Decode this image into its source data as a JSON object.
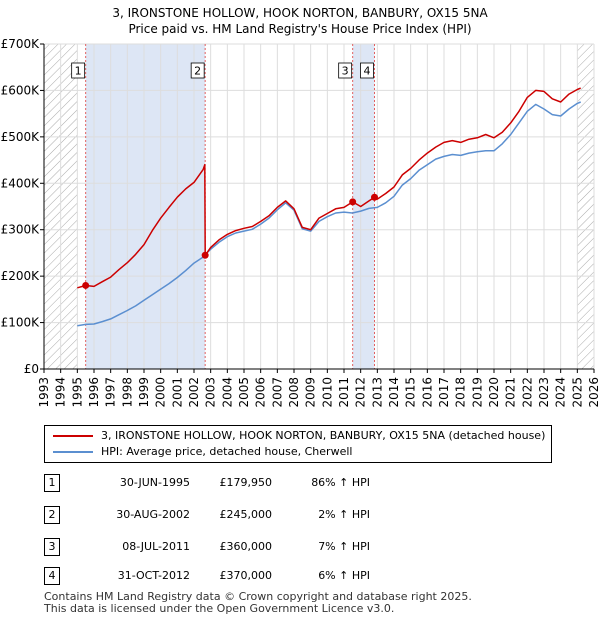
{
  "header": {
    "title_line1": "3, IRONSTONE HOLLOW, HOOK NORTON, BANBURY, OX15 5NA",
    "title_line2": "Price paid vs. HM Land Registry's House Price Index (HPI)"
  },
  "colors": {
    "property_line": "#cc0000",
    "hpi_line": "#5b8fd0",
    "shade": "#dde6f5",
    "hatch": "#aaaaaa",
    "marker_vline": "#e06060"
  },
  "legend": {
    "property_label": "3, IRONSTONE HOLLOW, HOOK NORTON, BANBURY, OX15 5NA (detached house)",
    "hpi_label": "HPI: Average price, detached house, Cherwell"
  },
  "transactions": [
    {
      "num": "1",
      "date": "30-JUN-1995",
      "price": "£179,950",
      "pct": "86% ↑ HPI"
    },
    {
      "num": "2",
      "date": "30-AUG-2002",
      "price": "£245,000",
      "pct": "2% ↑ HPI"
    },
    {
      "num": "3",
      "date": "08-JUL-2011",
      "price": "£360,000",
      "pct": "7% ↑ HPI"
    },
    {
      "num": "4",
      "date": "31-OCT-2012",
      "price": "£370,000",
      "pct": "6% ↑ HPI"
    }
  ],
  "footer": {
    "line1": "Contains HM Land Registry data © Crown copyright and database right 2025.",
    "line2": "This data is licensed under the Open Government Licence v3.0."
  },
  "chart_data": {
    "type": "line",
    "title": "Price paid vs. HM Land Registry's House Price Index (HPI)",
    "xlabel": "",
    "ylabel": "",
    "xlim": [
      1993,
      2026
    ],
    "ylim": [
      0,
      700000
    ],
    "x_ticks": [
      1993,
      1994,
      1995,
      1996,
      1997,
      1998,
      1999,
      2000,
      2001,
      2002,
      2003,
      2004,
      2005,
      2006,
      2007,
      2008,
      2009,
      2010,
      2011,
      2012,
      2013,
      2014,
      2015,
      2016,
      2017,
      2018,
      2019,
      2020,
      2021,
      2022,
      2023,
      2024,
      2025,
      2026
    ],
    "y_ticks": [
      0,
      100000,
      200000,
      300000,
      400000,
      500000,
      600000,
      700000
    ],
    "y_tick_labels": [
      "£0",
      "£100K",
      "£200K",
      "£300K",
      "£400K",
      "£500K",
      "£600K",
      "£700K"
    ],
    "hatched_ranges": [
      [
        1993,
        1995.0
      ],
      [
        2025.0,
        2026
      ]
    ],
    "shaded_ranges": [
      [
        1995.5,
        2002.67
      ],
      [
        2011.52,
        2012.83
      ]
    ],
    "series": [
      {
        "name": "3, IRONSTONE HOLLOW, HOOK NORTON, BANBURY, OX15 5NA (detached house)",
        "x": [
          1995.0,
          1995.5,
          1996.0,
          1996.5,
          1997.0,
          1997.5,
          1998.0,
          1998.5,
          1999.0,
          1999.5,
          2000.0,
          2000.5,
          2001.0,
          2001.5,
          2002.0,
          2002.55,
          2002.65,
          2002.67,
          2003.0,
          2003.5,
          2004.0,
          2004.5,
          2005.0,
          2005.5,
          2006.0,
          2006.5,
          2007.0,
          2007.5,
          2008.0,
          2008.5,
          2009.0,
          2009.5,
          2010.0,
          2010.5,
          2011.0,
          2011.52,
          2012.0,
          2012.5,
          2012.83,
          2013.0,
          2013.5,
          2014.0,
          2014.5,
          2015.0,
          2015.5,
          2016.0,
          2016.5,
          2017.0,
          2017.5,
          2018.0,
          2018.5,
          2019.0,
          2019.5,
          2020.0,
          2020.5,
          2021.0,
          2021.5,
          2022.0,
          2022.5,
          2023.0,
          2023.5,
          2024.0,
          2024.5,
          2025.0,
          2025.2
        ],
        "values": [
          175000,
          179950,
          178000,
          188000,
          198000,
          214000,
          229000,
          247000,
          268000,
          298000,
          325000,
          348000,
          370000,
          388000,
          402000,
          430000,
          440000,
          245000,
          262000,
          278000,
          290000,
          298000,
          303000,
          307000,
          318000,
          330000,
          348000,
          362000,
          345000,
          305000,
          300000,
          325000,
          335000,
          345000,
          348000,
          360000,
          350000,
          362000,
          370000,
          366000,
          378000,
          392000,
          418000,
          432000,
          450000,
          465000,
          478000,
          488000,
          492000,
          488000,
          495000,
          498000,
          505000,
          498000,
          510000,
          530000,
          555000,
          585000,
          600000,
          598000,
          582000,
          575000,
          592000,
          602000,
          605000
        ]
      },
      {
        "name": "HPI: Average price, detached house, Cherwell",
        "x": [
          1995.0,
          1995.5,
          1996.0,
          1996.5,
          1997.0,
          1997.5,
          1998.0,
          1998.5,
          1999.0,
          1999.5,
          2000.0,
          2000.5,
          2001.0,
          2001.5,
          2002.0,
          2002.5,
          2003.0,
          2003.5,
          2004.0,
          2004.5,
          2005.0,
          2005.5,
          2006.0,
          2006.5,
          2007.0,
          2007.5,
          2008.0,
          2008.5,
          2009.0,
          2009.5,
          2010.0,
          2010.5,
          2011.0,
          2011.5,
          2012.0,
          2012.5,
          2013.0,
          2013.5,
          2014.0,
          2014.5,
          2015.0,
          2015.5,
          2016.0,
          2016.5,
          2017.0,
          2017.5,
          2018.0,
          2018.5,
          2019.0,
          2019.5,
          2020.0,
          2020.5,
          2021.0,
          2021.5,
          2022.0,
          2022.5,
          2023.0,
          2023.5,
          2024.0,
          2024.5,
          2025.0,
          2025.2
        ],
        "values": [
          93000,
          96000,
          97000,
          102000,
          108000,
          117000,
          126000,
          136000,
          148000,
          160000,
          172000,
          184000,
          197000,
          212000,
          228000,
          240000,
          258000,
          273000,
          285000,
          293000,
          297000,
          301000,
          312000,
          325000,
          343000,
          358000,
          342000,
          302000,
          297000,
          318000,
          328000,
          336000,
          338000,
          336000,
          340000,
          346000,
          348000,
          358000,
          372000,
          396000,
          410000,
          428000,
          440000,
          452000,
          458000,
          462000,
          460000,
          465000,
          468000,
          470000,
          470000,
          485000,
          505000,
          530000,
          555000,
          570000,
          560000,
          548000,
          545000,
          560000,
          572000,
          575000
        ]
      }
    ],
    "markers": [
      {
        "label": "1",
        "x": 1995.5,
        "y": 179950
      },
      {
        "label": "2",
        "x": 2002.67,
        "y": 245000
      },
      {
        "label": "3",
        "x": 2011.52,
        "y": 360000
      },
      {
        "label": "4",
        "x": 2012.83,
        "y": 370000
      }
    ]
  }
}
